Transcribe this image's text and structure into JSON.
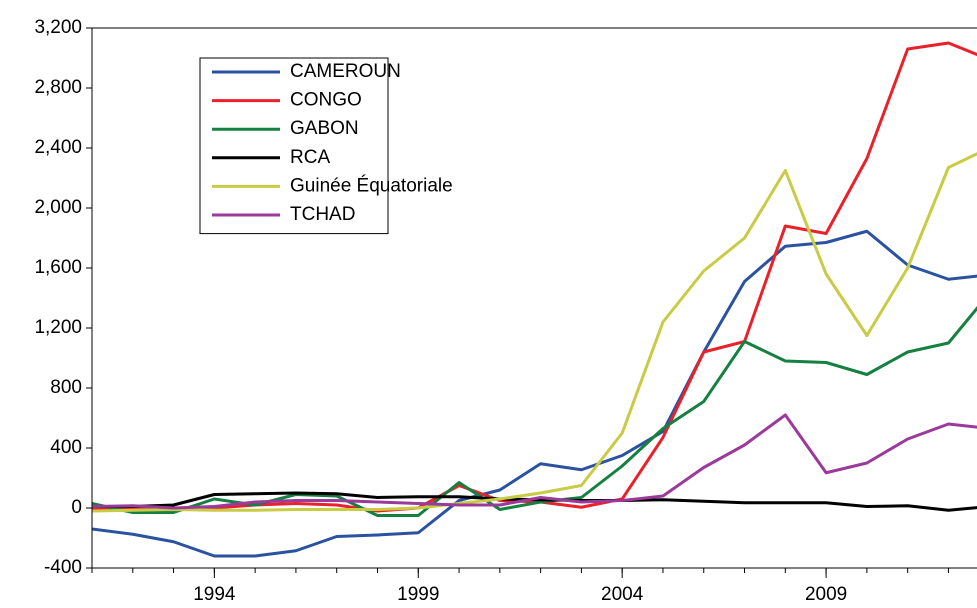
{
  "chart_data": {
    "type": "line",
    "x": [
      1991,
      1992,
      1993,
      1994,
      1995,
      1996,
      1997,
      1998,
      1999,
      2000,
      2001,
      2002,
      2003,
      2004,
      2005,
      2006,
      2007,
      2008,
      2009,
      2010,
      2011,
      2012,
      2013
    ],
    "series": [
      {
        "name": "CAMEROUN",
        "color": "#2a52a0",
        "values": [
          -140,
          -175,
          -225,
          -320,
          -320,
          -285,
          -190,
          -180,
          -165,
          50,
          120,
          295,
          255,
          350,
          510,
          1040,
          1510,
          1745,
          1770,
          1845,
          1620,
          1525,
          1555
        ]
      },
      {
        "name": "CONGO",
        "color": "#e8212a",
        "values": [
          -10,
          -5,
          -10,
          0,
          20,
          30,
          20,
          -20,
          0,
          150,
          50,
          40,
          5,
          60,
          470,
          1040,
          1110,
          1880,
          1830,
          2330,
          3060,
          3100,
          2990
        ]
      },
      {
        "name": "GABON",
        "color": "#158040",
        "values": [
          30,
          -30,
          -30,
          60,
          20,
          90,
          80,
          -50,
          -50,
          170,
          -10,
          40,
          70,
          280,
          530,
          710,
          1110,
          980,
          970,
          890,
          1040,
          1100,
          1430
        ]
      },
      {
        "name": "RCA",
        "color": "#000000",
        "values": [
          10,
          10,
          20,
          90,
          95,
          100,
          95,
          70,
          75,
          75,
          60,
          55,
          50,
          50,
          55,
          45,
          35,
          35,
          35,
          10,
          15,
          -15,
          10
        ]
      },
      {
        "name": "Guinée Équatoriale",
        "color": "#c8cc45",
        "values": [
          -20,
          -15,
          -10,
          -15,
          -15,
          -10,
          -10,
          -10,
          0,
          30,
          60,
          100,
          150,
          500,
          1240,
          1580,
          1800,
          2250,
          1560,
          1150,
          1600,
          2270,
          2400
        ]
      },
      {
        "name": "TCHAD",
        "color": "#9b3a9b",
        "values": [
          10,
          15,
          0,
          10,
          40,
          50,
          50,
          40,
          30,
          20,
          20,
          70,
          40,
          50,
          80,
          270,
          420,
          620,
          235,
          300,
          460,
          560,
          530
        ]
      }
    ],
    "xlim": [
      1991,
      2012.7
    ],
    "xticks": [
      1994,
      1999,
      2004,
      2009
    ],
    "xminorticks": [
      1991,
      1992,
      1993,
      1994,
      1995,
      1996,
      1997,
      1998,
      1999,
      2000,
      2001,
      2002,
      2003,
      2004,
      2005,
      2006,
      2007,
      2008,
      2009,
      2010,
      2011,
      2012
    ],
    "ylim": [
      -400,
      3200
    ],
    "yticks": [
      -400,
      0,
      400,
      800,
      {
        "value": 1200,
        "label": "1,200"
      },
      {
        "value": 1600,
        "label": "1,600"
      },
      {
        "value": 2000,
        "label": "2,000"
      },
      {
        "value": 2400,
        "label": "2,400"
      },
      {
        "value": 2800,
        "label": "2,800"
      },
      {
        "value": 3200,
        "label": "3,200"
      }
    ],
    "legend": "upper left"
  }
}
